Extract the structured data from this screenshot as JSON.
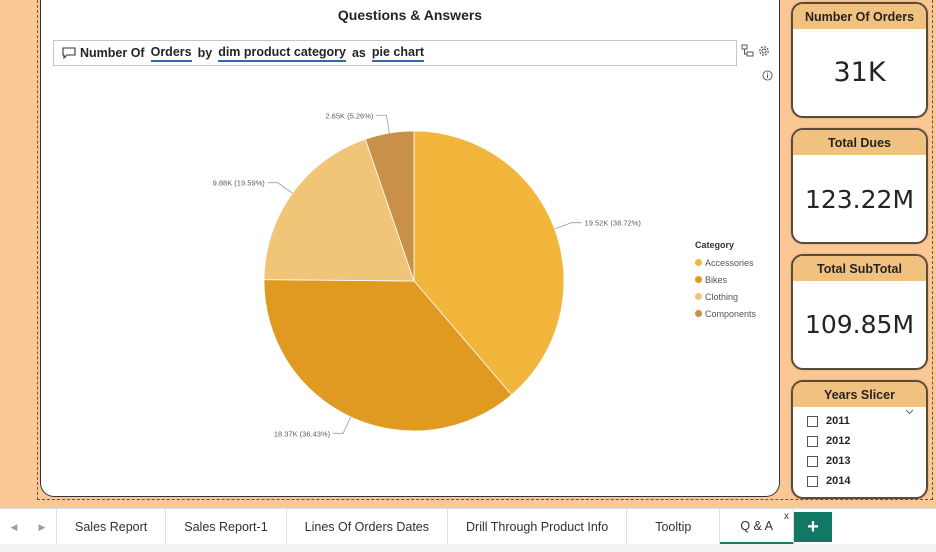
{
  "qa": {
    "title": "Questions & Answers",
    "query": {
      "t1": "Number Of",
      "t2": "Orders",
      "t3": "by",
      "t4": "dim product category",
      "t5": "as",
      "t6": "pie chart"
    }
  },
  "chart_data": {
    "type": "pie",
    "title": "Number Of Orders by dim product category",
    "legend_title": "Category",
    "legend_position": "right",
    "categories": [
      "Accessories",
      "Bikes",
      "Clothing",
      "Components"
    ],
    "values": [
      19.52,
      18.37,
      9.88,
      2.65
    ],
    "percents": [
      38.72,
      36.43,
      19.59,
      5.26
    ],
    "data_labels": [
      "19.52K (38.72%)",
      "18.37K (36.43%)",
      "9.88K (19.59%)",
      "2.65K (5.26%)"
    ],
    "colors": [
      "#f2b63c",
      "#e09a22",
      "#f1c577",
      "#c99049"
    ],
    "unit": "K"
  },
  "cards": [
    {
      "title": "Number Of Orders",
      "value": "31K"
    },
    {
      "title": "Total Dues",
      "value": "123.22M"
    },
    {
      "title": "Total SubTotal",
      "value": "109.85M"
    }
  ],
  "slicer": {
    "title": "Years Slicer",
    "items": [
      "2011",
      "2012",
      "2013",
      "2014"
    ]
  },
  "tabs": [
    {
      "label": "Sales Report"
    },
    {
      "label": "Sales Report-1"
    },
    {
      "label": "Lines Of Orders Dates"
    },
    {
      "label": "Drill Through Product Info"
    },
    {
      "label": "Tooltip"
    },
    {
      "label": "Q & A"
    }
  ],
  "tab_close": "x",
  "add_tab": "+",
  "colors": {
    "background": "#fbc895",
    "card_header": "#f1c27f",
    "active_tab": "#117865"
  }
}
